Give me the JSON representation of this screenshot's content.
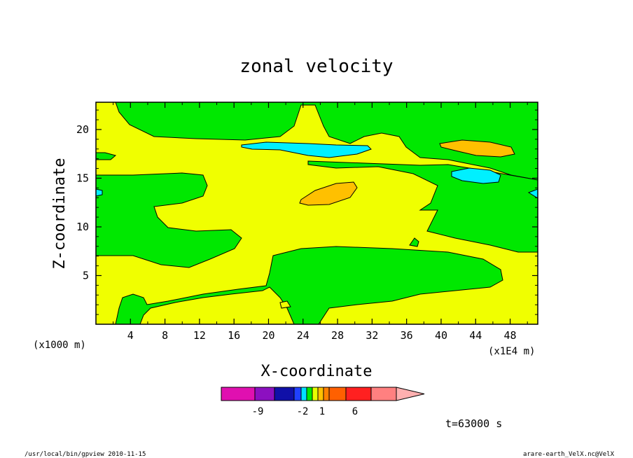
{
  "chart_data": {
    "type": "contour",
    "title": "zonal velocity",
    "xlabel": "X-coordinate",
    "ylabel": "Z-coordinate",
    "x_unit_left": "(x1000 m)",
    "x_unit_right": "(x1E4 m)",
    "xlim": [
      0,
      51.2
    ],
    "ylim": [
      0,
      22.8
    ],
    "x_ticks": [
      "4",
      "8",
      "12",
      "16",
      "20",
      "24",
      "28",
      "32",
      "36",
      "40",
      "44",
      "48"
    ],
    "y_ticks": [
      "5",
      "10",
      "15",
      "20"
    ],
    "x_tick_values": [
      4,
      8,
      12,
      16,
      20,
      24,
      28,
      32,
      36,
      40,
      44,
      48
    ],
    "y_tick_values": [
      5,
      10,
      15,
      20
    ],
    "colorbar": {
      "colors": [
        "#e010b0",
        "#8c10c0",
        "#1010a8",
        "#2040ff",
        "#00e0ff",
        "#00e800",
        "#e8ff00",
        "#ffc000",
        "#ff8000",
        "#ff6000",
        "#ff2020",
        "#ff8080",
        "#ffb0b0"
      ],
      "labels": [
        "-9",
        "-2",
        "1",
        "6"
      ],
      "label_values": [
        -9,
        -2,
        1,
        6
      ]
    },
    "regions": [
      {
        "level": "yellow",
        "color": "#f0ff00"
      },
      {
        "level": "green",
        "color": "#00e800"
      },
      {
        "level": "cyan",
        "color": "#00f0ff"
      },
      {
        "level": "orange",
        "color": "#ffc000"
      }
    ],
    "annotation": "t=63000 s"
  },
  "footer": {
    "left": "/usr/local/bin/gpview  2010-11-15",
    "right": "arare-earth_VelX.nc@VelX"
  }
}
